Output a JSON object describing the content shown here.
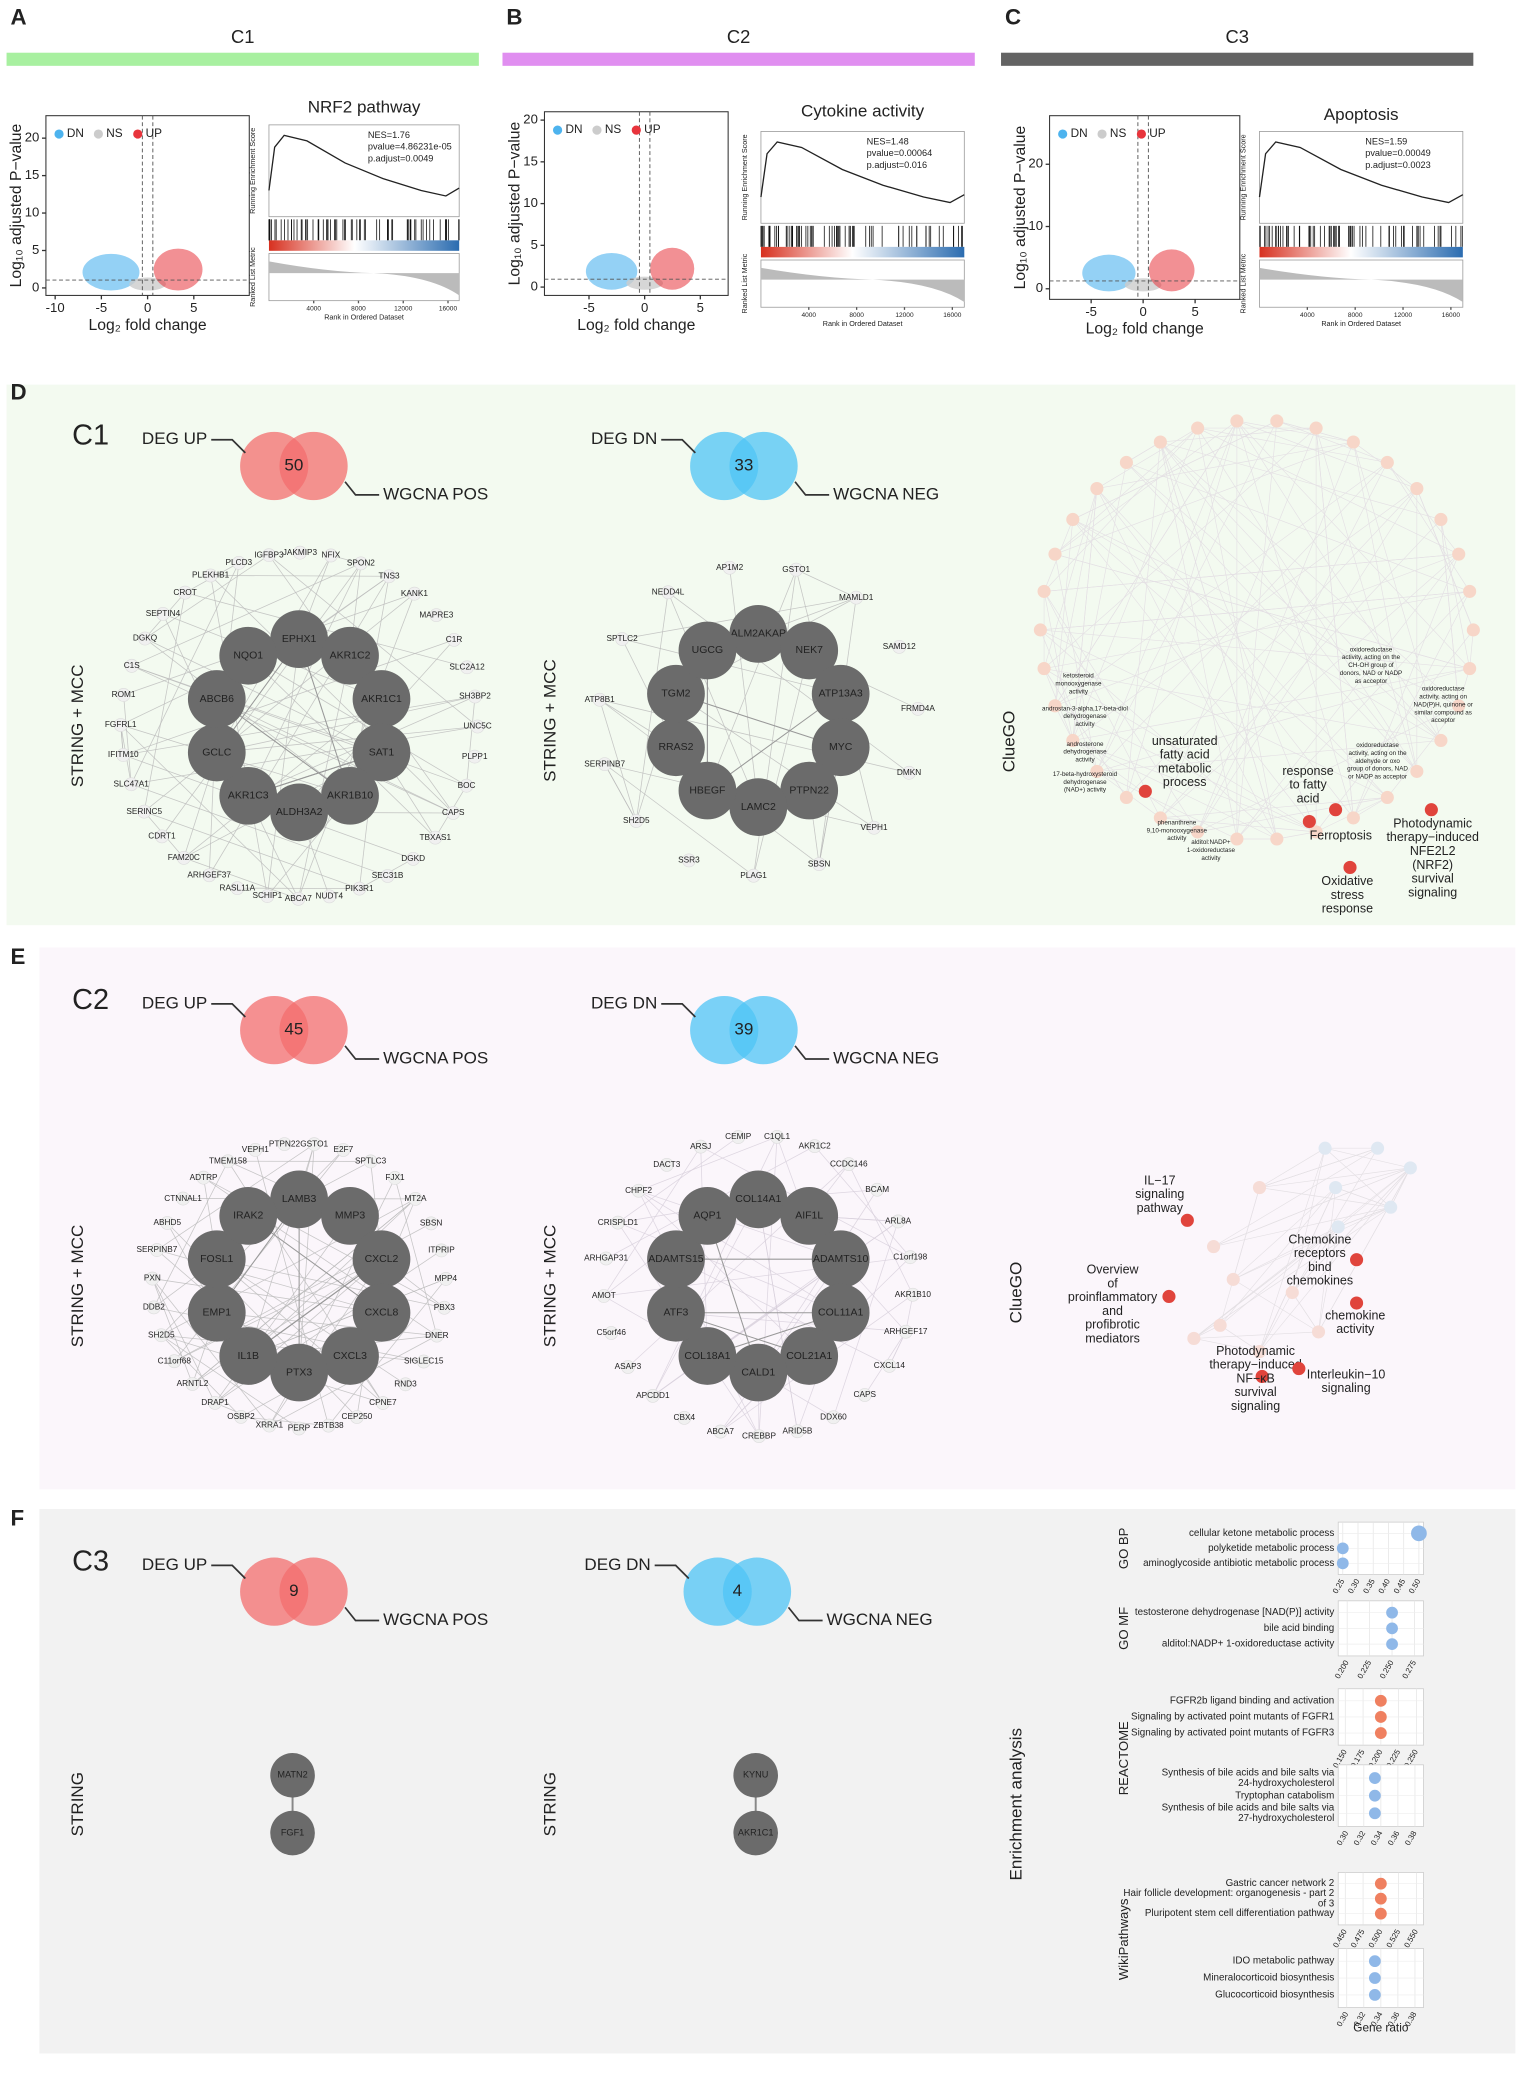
{
  "top_panels": [
    {
      "label": "A",
      "cluster": "C1",
      "color": "#a8f0a0",
      "volcano": {
        "ylabel": "Log₁₀ adjusted P−value",
        "xlabel": "Log₂ fold change",
        "legend": [
          "DN",
          "NS",
          "UP"
        ],
        "xlim": [
          -11,
          11
        ],
        "ylim": [
          -1,
          23
        ],
        "xticks": [
          -10,
          -5,
          0,
          5
        ],
        "yticks": [
          0,
          5,
          10,
          15,
          20
        ]
      },
      "gsea": {
        "title": "NRF2 pathway",
        "stats": [
          "NES=1.76",
          "pvalue=4.86231e-05",
          "p.adjust=0.0049"
        ],
        "es_label": "Running Enrichment Score",
        "metric_label": "Ranked List Metric",
        "xlabel": "Rank in Ordered Dataset",
        "xlim": [
          0,
          17000
        ],
        "xticks": [
          4000,
          8000,
          12000,
          16000
        ]
      }
    },
    {
      "label": "B",
      "cluster": "C2",
      "color": "#e08ef0",
      "volcano": {
        "ylabel": "Log₁₀ adjusted P−value",
        "xlabel": "Log₂ fold change",
        "legend": [
          "DN",
          "NS",
          "UP"
        ],
        "xlim": [
          -9,
          7.5
        ],
        "ylim": [
          -1,
          21
        ],
        "xticks": [
          -5,
          0,
          5
        ],
        "yticks": [
          0,
          5,
          10,
          15,
          20
        ]
      },
      "gsea": {
        "title": "Cytokine activity",
        "stats": [
          "NES=1.48",
          "pvalue=0.00064",
          "p.adjust=0.016"
        ],
        "es_label": "Running Enrichment Score",
        "metric_label": "Ranked List Metric",
        "xlabel": "Rank in Ordered Dataset",
        "xlim": [
          0,
          17000
        ],
        "xticks": [
          4000,
          8000,
          12000,
          16000
        ]
      }
    },
    {
      "label": "C",
      "cluster": "C3",
      "color": "#636363",
      "volcano": {
        "ylabel": "Log₁₀ adjusted P−value",
        "xlabel": "Log₂ fold change",
        "legend": [
          "DN",
          "NS",
          "UP"
        ],
        "xlim": [
          -9,
          9.3
        ],
        "ylim": [
          -1.7,
          27.8
        ],
        "xticks": [
          -5,
          0,
          5
        ],
        "yticks": [
          0,
          10,
          20
        ]
      },
      "gsea": {
        "title": "Apoptosis",
        "stats": [
          "NES=1.59",
          "pvalue=0.00049",
          "p.adjust=0.0023"
        ],
        "es_label": "Running Enrichment Score",
        "metric_label": "Ranked List Metric",
        "xlabel": "Rank in Ordered Dataset",
        "xlim": [
          0,
          17000
        ],
        "xticks": [
          4000,
          8000,
          12000,
          16000
        ]
      }
    }
  ],
  "network_panels": [
    {
      "label": "D",
      "cluster": "C1",
      "venns": [
        {
          "left": "DEG UP",
          "count": 50,
          "right": "WGCNA POS"
        },
        {
          "left": "DEG DN",
          "count": 33,
          "right": "WGCNA NEG"
        }
      ],
      "networks": [
        {
          "method": "STRING + MCC",
          "hubs": [
            "EPHX1",
            "AKR1C2",
            "AKR1C1",
            "SAT1",
            "AKR1B10",
            "ALDH3A2",
            "AKR1C3",
            "GCLC",
            "ABCB6",
            "NQO1"
          ],
          "genes": [
            "IGFBP3",
            "JAKMIP3",
            "NFIX",
            "SPON2",
            "TNS3",
            "KANK1",
            "MAPRE3",
            "C1R",
            "SLC2A12",
            "SH3BP2",
            "UNC5C",
            "PLPP1",
            "BOC",
            "CAPS",
            "TBXAS1",
            "DGKD",
            "SEC31B",
            "PIK3R1",
            "NUDT4",
            "ABCA7",
            "SCHIP1",
            "RASL11A",
            "ARHGEF37",
            "FAM20C",
            "CDRT1",
            "SERINC5",
            "SLC47A1",
            "IFITM10",
            "FGFRL1",
            "ROM1",
            "C1S",
            "DGKQ",
            "SEPTIN4",
            "CROT",
            "PLEKHB1",
            "PLCD3"
          ]
        },
        {
          "method": "STRING + MCC",
          "hubs": [
            "ALM2AKAP",
            "NEK7",
            "ATP13A3",
            "MYC",
            "PTPN22",
            "LAMC2",
            "HBEGF",
            "RRAS2",
            "TGM2",
            "UGCG"
          ],
          "genes": [
            "AP1M2",
            "GSTO1",
            "MAMLD1",
            "SAMD12",
            "FRMD4A",
            "DMKN",
            "VEPH1",
            "SBSN",
            "PLAG1",
            "SSR3",
            "SH2D5",
            "SERPINB7",
            "ATP8B1",
            "SPTLC2",
            "NEDD4L"
          ]
        }
      ],
      "cluego": {
        "label": "ClueGO",
        "terms": [
          {
            "lines": [
              "unsaturated",
              "fatty acid",
              "metabolic",
              "process"
            ]
          },
          {
            "lines": [
              "response",
              "to fatty",
              "acid"
            ]
          },
          {
            "lines": [
              "Ferroptosis"
            ]
          },
          {
            "lines": [
              "Oxidative",
              "stress",
              "response"
            ]
          },
          {
            "lines": [
              "Photodynamic",
              "therapy−induced",
              "NFE2L2",
              "(NRF2)",
              "survival",
              "signaling"
            ]
          }
        ],
        "faded_terms": [
          {
            "lines": [
              "oxidoreductase",
              "activity, acting on the",
              "CH-OH group of",
              "donors, NAD or NADP",
              "as acceptor"
            ]
          },
          {
            "lines": [
              "oxidoreductase",
              "activity, acting on",
              "NAD(P)H, quinone or",
              "similar compound as",
              "acceptor"
            ]
          },
          {
            "lines": [
              "ketosteroid",
              "monooxygenase",
              "activity"
            ]
          },
          {
            "lines": [
              "androstan-3-alpha,17-beta-diol",
              "dehydrogenase",
              "activity"
            ]
          },
          {
            "lines": [
              "androsterone",
              "dehydrogenase",
              "activity"
            ]
          },
          {
            "lines": [
              "17-beta-hydroxysteroid",
              "dehydrogenase",
              "(NAD+) activity"
            ]
          },
          {
            "lines": [
              "oxidoreductase",
              "activity, acting on the",
              "aldehyde or oxo",
              "group of donors, NAD",
              "or NADP as acceptor"
            ]
          },
          {
            "lines": [
              "phenanthrene",
              "9,10-monooxygenase",
              "activity"
            ]
          },
          {
            "lines": [
              "alditol:NADP+",
              "1-oxidoreductase",
              "activity"
            ]
          }
        ]
      }
    },
    {
      "label": "E",
      "cluster": "C2",
      "venns": [
        {
          "left": "DEG UP",
          "count": 45,
          "right": "WGCNA POS"
        },
        {
          "left": "DEG DN",
          "count": 39,
          "right": "WGCNA NEG"
        }
      ],
      "networks": [
        {
          "method": "STRING + MCC",
          "hubs": [
            "LAMB3",
            "MMP3",
            "CXCL2",
            "CXCL8",
            "CXCL3",
            "PTX3",
            "IL1B",
            "EMP1",
            "FOSL1",
            "IRAK2"
          ],
          "genes": [
            "PTPN22",
            "GSTO1",
            "E2F7",
            "SPTLC3",
            "FJX1",
            "MT2A",
            "SBSN",
            "ITPRIP",
            "MPP4",
            "PBX3",
            "DNER",
            "SIGLEC15",
            "RND3",
            "CPNE7",
            "CEP250",
            "ZBTB38",
            "PERP",
            "XRRA1",
            "OSBP2",
            "DRAP1",
            "ARNTL2",
            "C11orf68",
            "SH2D5",
            "DDB2",
            "PXN",
            "SERPINB7",
            "ABHD5",
            "CTNNAL1",
            "ADTRP",
            "TMEM158",
            "VEPH1"
          ]
        },
        {
          "method": "STRING + MCC",
          "hubs": [
            "COL14A1",
            "AIF1L",
            "ADAMTS10",
            "COL11A1",
            "COL21A1",
            "CALD1",
            "COL18A1",
            "ATF3",
            "ADAMTS15",
            "AQP1"
          ],
          "genes": [
            "CEMIP",
            "C1QL1",
            "AKR1C2",
            "CCDC146",
            "BCAM",
            "ARL8A",
            "C1orf198",
            "AKR1B10",
            "ARHGEF17",
            "CXCL14",
            "CAPS",
            "DDX60",
            "ARID5B",
            "CREBBP",
            "ABCA7",
            "CBX4",
            "APCDD1",
            "ASAP3",
            "C5orf46",
            "AMOT",
            "ARHGAP31",
            "CRISPLD1",
            "CHPF2",
            "DACT3",
            "ARSJ"
          ]
        }
      ],
      "cluego": {
        "label": "ClueGO",
        "terms": [
          {
            "lines": [
              "IL−17",
              "signaling",
              "pathway"
            ]
          },
          {
            "lines": [
              "Chemokine",
              "receptors",
              "bind",
              "chemokines"
            ]
          },
          {
            "lines": [
              "Overview",
              "of",
              "proinflammatory",
              "and",
              "profibrotic",
              "mediators"
            ]
          },
          {
            "lines": [
              "chemokine",
              "activity"
            ]
          },
          {
            "lines": [
              "Photodynamic",
              "therapy−induced",
              "NF−κB",
              "survival",
              "signaling"
            ]
          },
          {
            "lines": [
              "Interleukin−10",
              "signaling"
            ]
          }
        ],
        "faded_terms": []
      }
    },
    {
      "label": "F",
      "cluster": "C3",
      "venns": [
        {
          "left": "DEG UP",
          "count": 9,
          "right": "WGCNA POS"
        },
        {
          "left": "DEG DN",
          "count": 4,
          "right": "WGCNA NEG"
        }
      ],
      "networks": [
        {
          "method": "STRING",
          "hubs": [
            "MATN2",
            "FGF1"
          ],
          "genes": []
        },
        {
          "method": "STRING",
          "hubs": [
            "KYNU",
            "AKR1C1"
          ],
          "genes": []
        }
      ],
      "enrichment_label": "Enrichment analysis"
    }
  ],
  "chart_data": [
    {
      "type": "dot",
      "title": "GO BP",
      "panels": [
        {
          "categories": [
            "cellular ketone metabolic process",
            "polyketide metabolic process",
            "aminoglycoside antibiotic metabolic process"
          ],
          "values": [
            0.5,
            0.25,
            0.25
          ],
          "color": "#8fb8e8",
          "xlim": [
            0.235,
            0.515
          ],
          "xticks": [
            0.25,
            {
              "value": 0.3,
              "label": "0.30"
            },
            0.35,
            {
              "value": 0.4,
              "label": "0.40"
            },
            0.45,
            {
              "value": 0.5,
              "label": "0.50"
            }
          ]
        }
      ]
    },
    {
      "type": "dot",
      "title": "GO MF",
      "panels": [
        {
          "categories": [
            "testosterone dehydrogenase [NAD(P)] activity",
            "bile acid binding",
            "alditol:NADP+ 1-oxidoreductase activity"
          ],
          "values": [
            0.25,
            0.25,
            0.25
          ],
          "color": "#8fb8e8",
          "xlim": [
            0.19,
            0.285
          ],
          "xticks": [
            {
              "value": 0.2,
              "label": "0.200"
            },
            0.225,
            {
              "value": 0.25,
              "label": "0.250"
            },
            0.275
          ]
        }
      ]
    },
    {
      "type": "dot",
      "title": "REACTOME",
      "panels": [
        {
          "categories": [
            "FGFR2b ligand binding and activation",
            "Signaling by activated point mutants of FGFR1",
            "Signaling by activated point mutants of FGFR3"
          ],
          "values": [
            0.2,
            0.2,
            0.2
          ],
          "color": "#ef8060",
          "xlim": [
            0.14,
            0.26
          ],
          "xticks": [
            {
              "value": 0.15,
              "label": "0.150"
            },
            0.175,
            {
              "value": 0.2,
              "label": "0.200"
            },
            0.225,
            {
              "value": 0.25,
              "label": "0.250"
            }
          ]
        },
        {
          "categories": [
            [
              "Synthesis of bile acids and bile salts via",
              "24-hydroxycholesterol"
            ],
            "Tryptophan catabolism",
            [
              "Synthesis of bile acids and bile salts via",
              "27-hydroxycholesterol"
            ]
          ],
          "values": [
            0.333,
            0.333,
            0.333
          ],
          "color": "#8fb8e8",
          "xlim": [
            0.29,
            0.39
          ],
          "xticks": [
            {
              "value": 0.3,
              "label": "0.30"
            },
            0.32,
            0.34,
            0.36,
            0.38
          ]
        }
      ]
    },
    {
      "type": "dot",
      "title": "WikiPathways",
      "xlabel": "Gene ratio",
      "panels": [
        {
          "categories": [
            "Gastric cancer network 2",
            [
              "Hair follicle development: organogenesis - part 2",
              "of 3"
            ],
            "Pluripotent stem cell differentiation pathway"
          ],
          "values": [
            0.5,
            0.5,
            0.5
          ],
          "color": "#ef8060",
          "xlim": [
            0.44,
            0.56
          ],
          "xticks": [
            {
              "value": 0.45,
              "label": "0.450"
            },
            0.475,
            {
              "value": 0.5,
              "label": "0.500"
            },
            0.525,
            {
              "value": 0.55,
              "label": "0.550"
            }
          ]
        },
        {
          "categories": [
            "IDO metabolic pathway",
            "Mineralocorticoid biosynthesis",
            "Glucocorticoid biosynthesis"
          ],
          "values": [
            0.333,
            0.333,
            0.333
          ],
          "color": "#8fb8e8",
          "xlim": [
            0.29,
            0.39
          ],
          "xticks": [
            {
              "value": 0.3,
              "label": "0.30"
            },
            0.32,
            0.34,
            0.36,
            0.38
          ]
        }
      ]
    }
  ]
}
